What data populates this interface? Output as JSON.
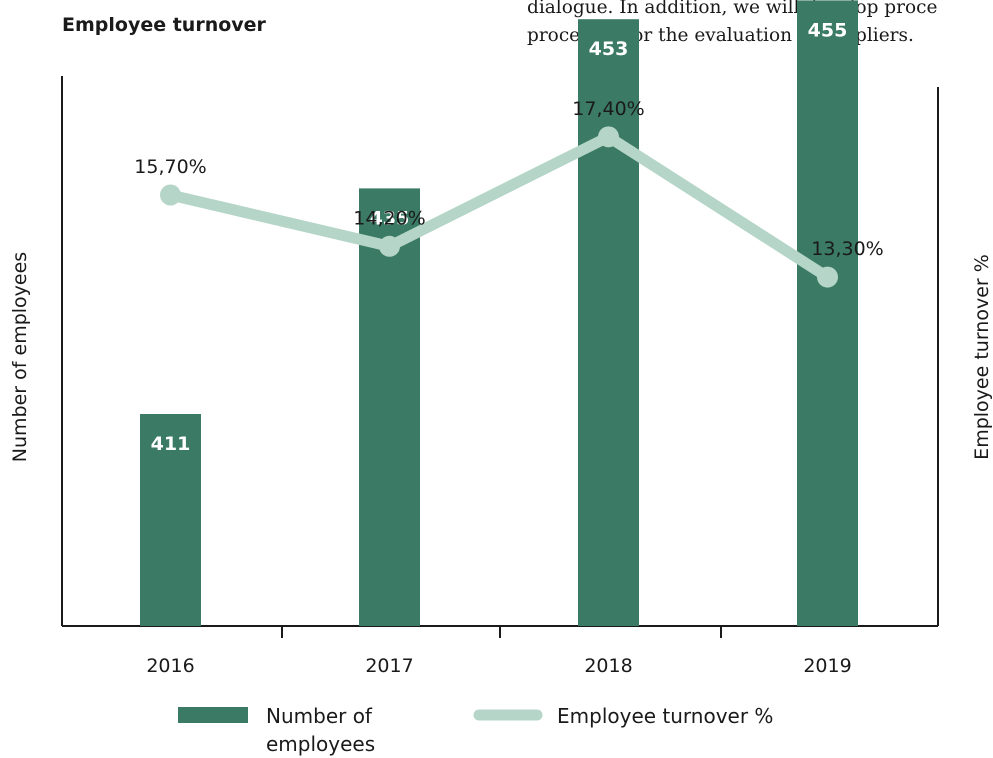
{
  "title": "Employee turnover",
  "excerpt": [
    "dialogue. In addition, we will develop proce",
    "processes for the evaluation of suppliers."
  ],
  "colors": {
    "bar": "#3b7a64",
    "line": "#b5d5c8",
    "bar_label": "#ffffff",
    "text": "#1a1a1a",
    "axis": "#1a1a1a"
  },
  "chart_data": {
    "type": "bar",
    "title": "Employee turnover",
    "categories": [
      "2016",
      "2017",
      "2018",
      "2019"
    ],
    "ylabel": "Number of employees",
    "y2label": "Employee turnover %",
    "series": [
      {
        "name": "Number of employees",
        "type": "bar",
        "axis": "left",
        "values": [
          411,
          435,
          453,
          455
        ],
        "labels": [
          "411",
          "435",
          "453",
          "455"
        ]
      },
      {
        "name": "Employee turnover %",
        "type": "line",
        "axis": "right",
        "values": [
          15.7,
          14.2,
          17.4,
          13.3
        ],
        "labels": [
          "15,70%",
          "14,20%",
          "17,40%",
          "13,30%"
        ]
      }
    ],
    "legend": {
      "placement": "bottom",
      "items": [
        "Number of employees",
        "Employee turnover %"
      ]
    },
    "grid": false
  }
}
